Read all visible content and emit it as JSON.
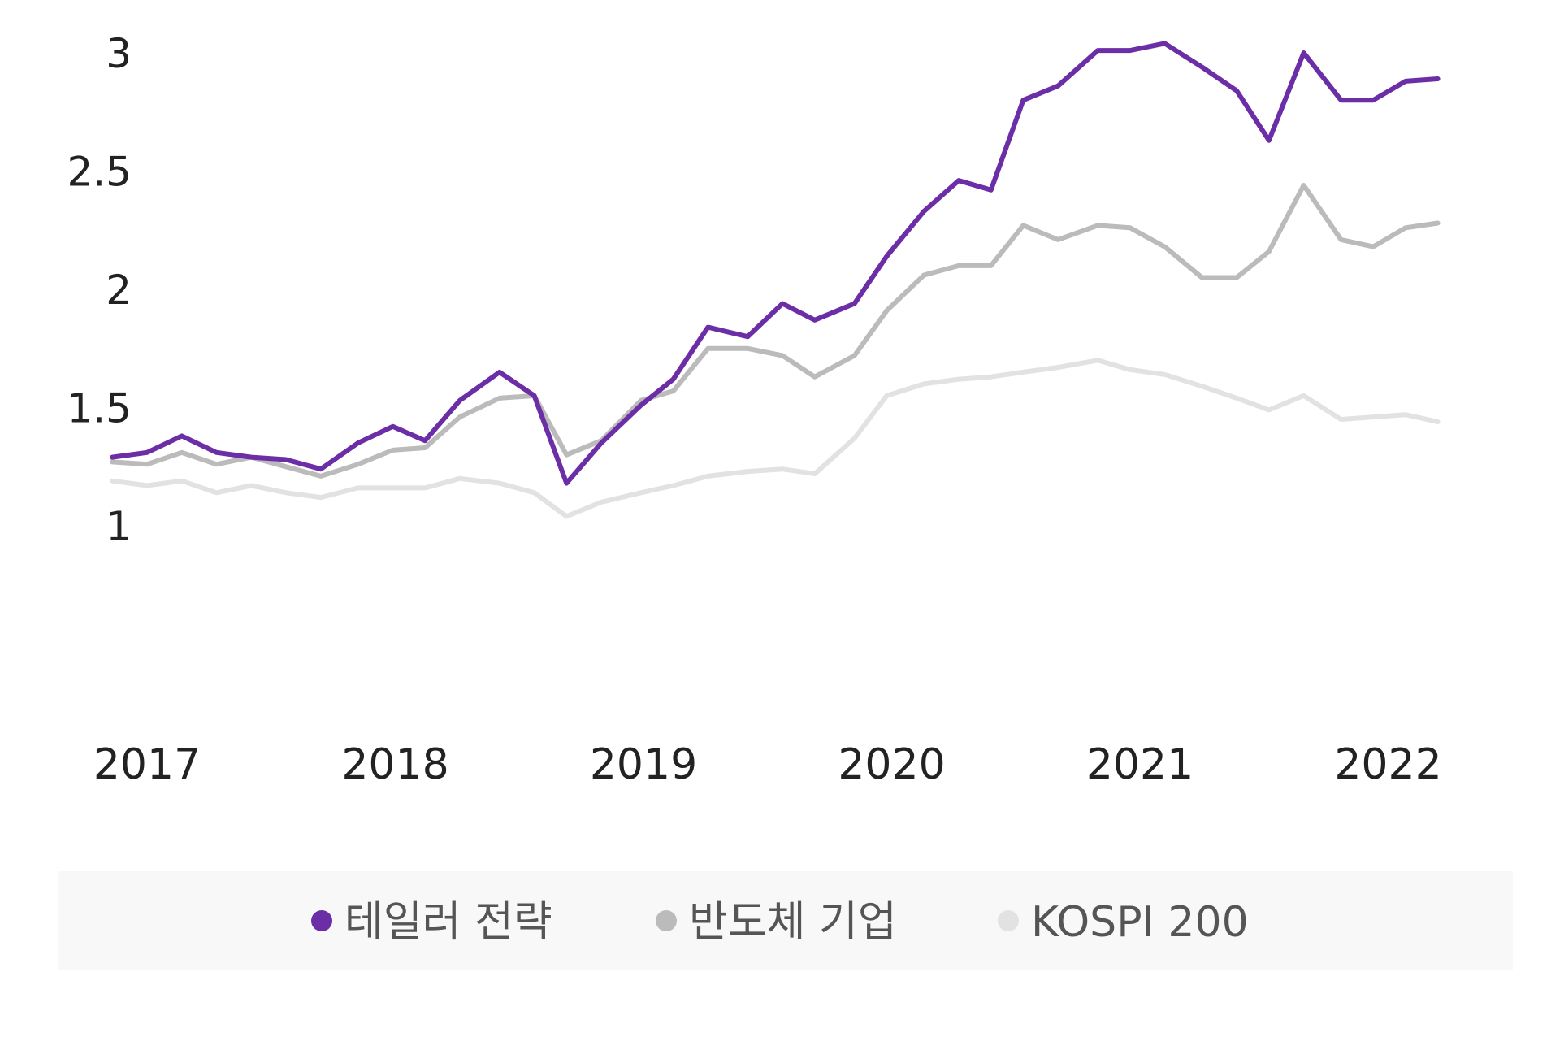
{
  "chart_data": {
    "type": "line",
    "title": "",
    "xlabel": "",
    "ylabel": "",
    "x_ticks": [
      "2017",
      "2018",
      "2019",
      "2020",
      "2021",
      "2022"
    ],
    "y_ticks": [
      "1",
      "1.5",
      "2",
      "2.5",
      "3"
    ],
    "ylim": [
      0.7,
      3.3
    ],
    "xlim": [
      2016.8,
      2022.3
    ],
    "grid": false,
    "legend_position": "bottom",
    "series": [
      {
        "name": "KOSPI 200",
        "color": "#e2e2e2",
        "x": [
          2016.86,
          2017.0,
          2017.14,
          2017.28,
          2017.42,
          2017.56,
          2017.7,
          2017.85,
          2017.99,
          2018.12,
          2018.26,
          2018.42,
          2018.56,
          2018.69,
          2018.83,
          2018.99,
          2019.12,
          2019.26,
          2019.42,
          2019.56,
          2019.69,
          2019.85,
          2019.98,
          2020.13,
          2020.27,
          2020.4,
          2020.53,
          2020.67,
          2020.83,
          2020.96,
          2021.1,
          2021.25,
          2021.39,
          2021.52,
          2021.66,
          2021.81,
          2021.94,
          2022.07,
          2022.2
        ],
        "y": [
          1.19,
          1.17,
          1.19,
          1.14,
          1.17,
          1.14,
          1.12,
          1.16,
          1.16,
          1.16,
          1.2,
          1.18,
          1.14,
          1.04,
          1.1,
          1.14,
          1.17,
          1.21,
          1.23,
          1.24,
          1.22,
          1.37,
          1.55,
          1.6,
          1.62,
          1.63,
          1.65,
          1.67,
          1.7,
          1.66,
          1.64,
          1.59,
          1.54,
          1.49,
          1.55,
          1.45,
          1.46,
          1.47,
          1.44
        ]
      },
      {
        "name": "반도체 기업",
        "color": "#bbbbbb",
        "x": [
          2016.86,
          2017.0,
          2017.14,
          2017.28,
          2017.42,
          2017.56,
          2017.7,
          2017.85,
          2017.99,
          2018.12,
          2018.26,
          2018.42,
          2018.56,
          2018.69,
          2018.83,
          2018.99,
          2019.12,
          2019.26,
          2019.42,
          2019.56,
          2019.69,
          2019.85,
          2019.98,
          2020.13,
          2020.27,
          2020.4,
          2020.53,
          2020.67,
          2020.83,
          2020.96,
          2021.1,
          2021.25,
          2021.39,
          2021.52,
          2021.66,
          2021.81,
          2021.94,
          2022.07,
          2022.2
        ],
        "y": [
          1.27,
          1.26,
          1.31,
          1.26,
          1.29,
          1.25,
          1.21,
          1.26,
          1.32,
          1.33,
          1.46,
          1.54,
          1.55,
          1.3,
          1.36,
          1.53,
          1.57,
          1.75,
          1.75,
          1.72,
          1.63,
          1.72,
          1.91,
          2.06,
          2.1,
          2.1,
          2.27,
          2.21,
          2.27,
          2.26,
          2.18,
          2.05,
          2.05,
          2.16,
          2.44,
          2.21,
          2.18,
          2.26,
          2.28
        ]
      },
      {
        "name": "테일러 전략",
        "color": "#6b2ea6",
        "x": [
          2016.86,
          2017.0,
          2017.14,
          2017.28,
          2017.42,
          2017.56,
          2017.7,
          2017.85,
          2017.99,
          2018.12,
          2018.26,
          2018.42,
          2018.56,
          2018.69,
          2018.83,
          2018.99,
          2019.12,
          2019.26,
          2019.42,
          2019.56,
          2019.69,
          2019.85,
          2019.98,
          2020.13,
          2020.27,
          2020.4,
          2020.53,
          2020.67,
          2020.83,
          2020.96,
          2021.1,
          2021.25,
          2021.39,
          2021.52,
          2021.66,
          2021.81,
          2021.94,
          2022.07,
          2022.2
        ],
        "y": [
          1.29,
          1.31,
          1.38,
          1.31,
          1.29,
          1.28,
          1.24,
          1.35,
          1.42,
          1.36,
          1.53,
          1.65,
          1.55,
          1.18,
          1.35,
          1.51,
          1.62,
          1.84,
          1.8,
          1.94,
          1.87,
          1.94,
          2.14,
          2.33,
          2.46,
          2.42,
          2.8,
          2.86,
          3.01,
          3.01,
          3.04,
          2.94,
          2.84,
          2.63,
          3.0,
          2.8,
          2.8,
          2.88,
          2.89
        ]
      }
    ]
  },
  "legend": {
    "items": [
      {
        "label": "테일러 전략",
        "color": "#6b2ea6"
      },
      {
        "label": "반도체 기업",
        "color": "#bbbbbb"
      },
      {
        "label": "KOSPI 200",
        "color": "#e2e2e2"
      }
    ],
    "background": "#f8f8f8"
  }
}
